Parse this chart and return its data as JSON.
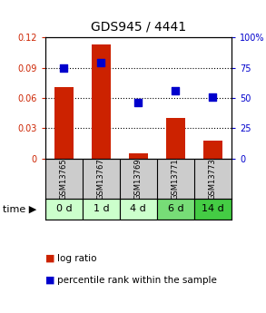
{
  "title": "GDS945 / 4441",
  "samples": [
    "GSM13765",
    "GSM13767",
    "GSM13769",
    "GSM13771",
    "GSM13773"
  ],
  "time_labels": [
    "0 d",
    "1 d",
    "4 d",
    "6 d",
    "14 d"
  ],
  "log_ratio": [
    0.071,
    0.113,
    0.005,
    0.04,
    0.018
  ],
  "percentile_rank": [
    75,
    79,
    46,
    56,
    51
  ],
  "bar_color": "#cc2200",
  "dot_color": "#0000cc",
  "ylim_left": [
    0,
    0.12
  ],
  "ylim_right": [
    0,
    100
  ],
  "yticks_left": [
    0,
    0.03,
    0.06,
    0.09,
    0.12
  ],
  "yticks_right": [
    0,
    25,
    50,
    75,
    100
  ],
  "ytick_labels_left": [
    "0",
    "0.03",
    "0.06",
    "0.09",
    "0.12"
  ],
  "ytick_labels_right": [
    "0",
    "25",
    "50",
    "75",
    "100%"
  ],
  "grid_color": "#000000",
  "sample_box_color": "#cccccc",
  "time_box_colors": [
    "#ccffcc",
    "#ccffcc",
    "#ccffcc",
    "#77dd77",
    "#44cc44"
  ],
  "bar_width": 0.5,
  "dot_size": 30,
  "background_color": "#ffffff",
  "plot_bg_color": "#ffffff",
  "title_fontsize": 10,
  "tick_fontsize": 7,
  "legend_fontsize": 7.5,
  "sample_fontsize": 6,
  "time_label_fontsize": 8
}
